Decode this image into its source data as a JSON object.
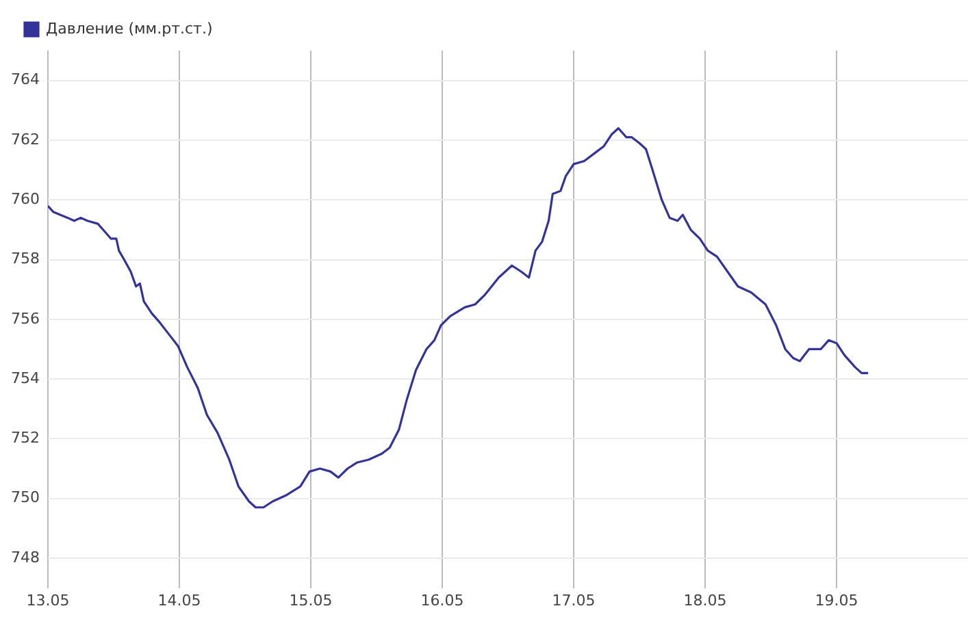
{
  "chart_data": {
    "type": "line",
    "legend": "top left",
    "grid": true,
    "marker": "none",
    "line_style": "solid",
    "xlim": [
      "--05-13",
      "--05-20"
    ],
    "xticks": [
      {
        "value": "--05-13",
        "label": "13.05"
      },
      {
        "value": "--05-14",
        "label": "14.05"
      },
      {
        "value": "--05-15",
        "label": "15.05"
      },
      {
        "value": "--05-16",
        "label": "16.05"
      },
      {
        "value": "--05-17",
        "label": "17.05"
      },
      {
        "value": "--05-18",
        "label": "18.05"
      },
      {
        "value": "--05-19",
        "label": "19.05"
      }
    ],
    "ylim": [
      747,
      765
    ],
    "yticks": [
      748,
      750,
      752,
      754,
      756,
      758,
      760,
      762,
      764
    ],
    "x": [
      "--05-13T00:00",
      "--05-13T00:58",
      "--05-13T03:36",
      "--05-13T04:48",
      "--05-13T06:00",
      "--05-13T07:12",
      "--05-13T09:07",
      "--05-13T10:34",
      "--05-13T11:31",
      "--05-13T12:29",
      "--05-13T12:58",
      "--05-13T13:55",
      "--05-13T15:07",
      "--05-13T16:05",
      "--05-13T16:48",
      "--05-13T17:31",
      "--05-13T18:58",
      "--05-13T20:24",
      "--05-13T22:05",
      "--05-13T23:46",
      "--05-14T01:26",
      "--05-14T03:22",
      "--05-14T05:02",
      "--05-14T06:58",
      "--05-14T09:07",
      "--05-14T10:48",
      "--05-14T12:43",
      "--05-14T13:55",
      "--05-14T15:22",
      "--05-14T17:02",
      "--05-14T19:26",
      "--05-14T22:05",
      "--05-14T23:46",
      "--05-15T01:41",
      "--05-15T03:36",
      "--05-15T05:02",
      "--05-15T06:43",
      "--05-15T08:24",
      "--05-15T10:34",
      "--05-15T12:58",
      "--05-15T14:24",
      "--05-15T16:05",
      "--05-15T17:31",
      "--05-15T19:12",
      "--05-15T21:07",
      "--05-15T22:34",
      "--05-15T23:46",
      "--05-16T01:26",
      "--05-16T04:05",
      "--05-16T06:00",
      "--05-16T07:41",
      "--05-16T10:19",
      "--05-16T12:43",
      "--05-16T14:24",
      "--05-16T15:50",
      "--05-16T17:02",
      "--05-16T18:14",
      "--05-16T19:26",
      "--05-16T20:10",
      "--05-16T21:36",
      "--05-16T22:34",
      "--05-17T00:00",
      "--05-17T01:55",
      "--05-17T04:05",
      "--05-17T05:31",
      "--05-17T06:58",
      "--05-17T08:10",
      "--05-17T09:36",
      "--05-17T10:34",
      "--05-17T12:00",
      "--05-17T13:12",
      "--05-17T14:24",
      "--05-17T16:05",
      "--05-17T17:31",
      "--05-17T18:58",
      "--05-17T19:55",
      "--05-17T21:22",
      "--05-17T23:02",
      "--05-18T00:29",
      "--05-18T02:10",
      "--05-18T04:05",
      "--05-18T06:00",
      "--05-18T08:24",
      "--05-18T11:02",
      "--05-18T12:58",
      "--05-18T14:38",
      "--05-18T16:05",
      "--05-18T17:17",
      "--05-18T18:58",
      "--05-18T21:07",
      "--05-18T22:34",
      "--05-19T00:00",
      "--05-19T01:26",
      "--05-19T03:22",
      "--05-19T04:34",
      "--05-19T05:46"
    ],
    "series": [
      {
        "name": "Давление (мм.рт.ст.)",
        "color": "#333399",
        "values": [
          759.8,
          759.6,
          759.4,
          759.3,
          759.4,
          759.3,
          759.2,
          758.9,
          758.7,
          758.7,
          758.3,
          758,
          757.6,
          757.1,
          757.2,
          756.6,
          756.2,
          755.9,
          755.5,
          755.1,
          754.4,
          753.7,
          752.8,
          752.2,
          751.3,
          750.4,
          749.9,
          749.7,
          749.7,
          749.9,
          750.1,
          750.4,
          750.9,
          751,
          750.9,
          750.7,
          751,
          751.2,
          751.3,
          751.5,
          751.7,
          752.3,
          753.3,
          754.3,
          755,
          755.3,
          755.8,
          756.1,
          756.4,
          756.5,
          756.8,
          757.4,
          757.8,
          757.6,
          757.4,
          758.3,
          758.6,
          759.3,
          760.2,
          760.3,
          760.8,
          761.2,
          761.3,
          761.6,
          761.8,
          762.2,
          762.4,
          762.1,
          762.1,
          761.9,
          761.7,
          761,
          760,
          759.4,
          759.3,
          759.5,
          759,
          758.7,
          758.3,
          758.1,
          757.6,
          757.1,
          756.9,
          756.5,
          755.8,
          755,
          754.7,
          754.6,
          755,
          755,
          755.3,
          755.2,
          754.8,
          754.4,
          754.2,
          754.2
        ]
      }
    ]
  }
}
